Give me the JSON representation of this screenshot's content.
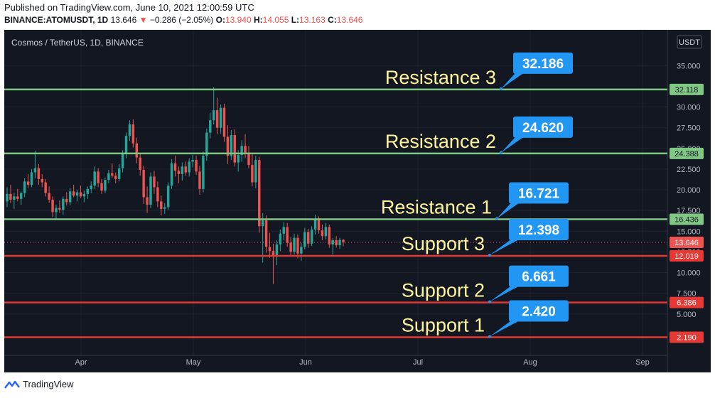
{
  "header": {
    "published": "Published on TradingView.com, June 10, 2021 12:00:59 UTC",
    "symbol": "BINANCE:ATOMUSDT, 1D",
    "last": "13.646",
    "arrow": "▼",
    "change": "−0.286 (−2.05%)",
    "o_label": "O:",
    "o": "13.940",
    "h_label": "H:",
    "h": "14.055",
    "l_label": "L:",
    "l": "13.163",
    "c_label": "C:",
    "c": "13.646"
  },
  "chart_title": "Cosmos / TetherUS, 1D, BINANCE",
  "currency": "USDT",
  "footer": {
    "brand": "TradingView",
    "icon": "tradingview-logo-icon"
  },
  "colors": {
    "background": "#131722",
    "up": "#26a69a",
    "down": "#ef5350",
    "resistance": "#81c784",
    "support": "#e53935",
    "callout": "#2196f3",
    "label_text": "#fff59d",
    "axis_text": "#b2b5be"
  },
  "chart_data": {
    "type": "candlestick",
    "ylim": [
      0,
      37.6
    ],
    "y_ticks": [
      "5.000",
      "7.500",
      "10.000",
      "12.500",
      "15.000",
      "17.500",
      "20.000",
      "22.500",
      "25.000",
      "27.500",
      "30.000",
      "35.000"
    ],
    "x_ticks": [
      "Apr",
      "May",
      "Jun",
      "Jul",
      "Aug",
      "Sep"
    ],
    "last_price": {
      "value": 13.646,
      "label": "13.646"
    },
    "levels": [
      {
        "name": "Resistance 3",
        "callout": "32.186",
        "value": 32.118,
        "axis_label": "32.118",
        "kind": "resistance"
      },
      {
        "name": "Resistance 2",
        "callout": "24.620",
        "value": 24.388,
        "axis_label": "24.388",
        "kind": "resistance"
      },
      {
        "name": "Resistance 1",
        "callout": "16.721",
        "value": 16.436,
        "axis_label": "16.436",
        "kind": "resistance"
      },
      {
        "name": "Support 3",
        "callout": "12.398",
        "value": 12.019,
        "axis_label": "12.019",
        "kind": "support"
      },
      {
        "name": "Support 2",
        "callout": "6.661",
        "value": 6.386,
        "axis_label": "6.386",
        "kind": "support"
      },
      {
        "name": "Support 1",
        "callout": "2.420",
        "value": 2.19,
        "axis_label": "2.190",
        "kind": "support"
      }
    ],
    "candles": [
      {
        "o": 18.6,
        "h": 20.3,
        "l": 17.9,
        "c": 19.5
      },
      {
        "o": 19.5,
        "h": 20.6,
        "l": 18.4,
        "c": 18.8
      },
      {
        "o": 18.8,
        "h": 19.6,
        "l": 17.7,
        "c": 19.2
      },
      {
        "o": 19.2,
        "h": 20.1,
        "l": 18.6,
        "c": 18.9
      },
      {
        "o": 18.9,
        "h": 19.8,
        "l": 18.2,
        "c": 19.6
      },
      {
        "o": 19.6,
        "h": 21.4,
        "l": 19.1,
        "c": 21.0
      },
      {
        "o": 21.0,
        "h": 21.9,
        "l": 20.2,
        "c": 20.6
      },
      {
        "o": 20.6,
        "h": 22.5,
        "l": 20.3,
        "c": 22.1
      },
      {
        "o": 22.1,
        "h": 24.7,
        "l": 21.4,
        "c": 22.6
      },
      {
        "o": 22.6,
        "h": 23.1,
        "l": 20.6,
        "c": 21.3
      },
      {
        "o": 21.3,
        "h": 21.9,
        "l": 20.3,
        "c": 20.9
      },
      {
        "o": 20.9,
        "h": 21.3,
        "l": 19.2,
        "c": 19.6
      },
      {
        "o": 19.6,
        "h": 20.4,
        "l": 18.4,
        "c": 18.8
      },
      {
        "o": 18.8,
        "h": 19.2,
        "l": 16.7,
        "c": 17.3
      },
      {
        "o": 17.3,
        "h": 18.2,
        "l": 16.5,
        "c": 17.8
      },
      {
        "o": 17.8,
        "h": 18.7,
        "l": 17.2,
        "c": 17.6
      },
      {
        "o": 17.6,
        "h": 19.2,
        "l": 17.0,
        "c": 18.9
      },
      {
        "o": 18.9,
        "h": 19.7,
        "l": 18.1,
        "c": 18.5
      },
      {
        "o": 18.5,
        "h": 20.2,
        "l": 18.1,
        "c": 19.8
      },
      {
        "o": 19.8,
        "h": 20.6,
        "l": 19.1,
        "c": 19.3
      },
      {
        "o": 19.3,
        "h": 20.0,
        "l": 18.6,
        "c": 19.7
      },
      {
        "o": 19.7,
        "h": 20.5,
        "l": 19.0,
        "c": 19.2
      },
      {
        "o": 19.2,
        "h": 19.9,
        "l": 18.5,
        "c": 19.5
      },
      {
        "o": 19.5,
        "h": 20.4,
        "l": 18.9,
        "c": 20.1
      },
      {
        "o": 20.1,
        "h": 21.0,
        "l": 19.6,
        "c": 20.5
      },
      {
        "o": 20.5,
        "h": 22.8,
        "l": 20.1,
        "c": 22.2
      },
      {
        "o": 22.2,
        "h": 22.6,
        "l": 20.3,
        "c": 20.8
      },
      {
        "o": 20.8,
        "h": 21.3,
        "l": 19.5,
        "c": 19.9
      },
      {
        "o": 19.9,
        "h": 21.5,
        "l": 19.6,
        "c": 21.2
      },
      {
        "o": 21.2,
        "h": 22.4,
        "l": 20.8,
        "c": 22.0
      },
      {
        "o": 22.0,
        "h": 23.2,
        "l": 21.4,
        "c": 21.7
      },
      {
        "o": 21.7,
        "h": 22.1,
        "l": 20.8,
        "c": 21.3
      },
      {
        "o": 21.3,
        "h": 23.1,
        "l": 21.0,
        "c": 22.6
      },
      {
        "o": 22.6,
        "h": 24.8,
        "l": 22.1,
        "c": 24.4
      },
      {
        "o": 24.4,
        "h": 26.9,
        "l": 23.8,
        "c": 26.5
      },
      {
        "o": 26.5,
        "h": 28.4,
        "l": 25.9,
        "c": 27.9
      },
      {
        "o": 27.9,
        "h": 28.5,
        "l": 25.1,
        "c": 25.6
      },
      {
        "o": 25.6,
        "h": 26.3,
        "l": 23.2,
        "c": 23.9
      },
      {
        "o": 23.9,
        "h": 24.3,
        "l": 21.7,
        "c": 22.4
      },
      {
        "o": 22.4,
        "h": 22.9,
        "l": 18.3,
        "c": 19.1
      },
      {
        "o": 19.1,
        "h": 20.4,
        "l": 17.2,
        "c": 18.2
      },
      {
        "o": 18.2,
        "h": 22.1,
        "l": 17.8,
        "c": 21.6
      },
      {
        "o": 21.6,
        "h": 22.3,
        "l": 19.5,
        "c": 20.3
      },
      {
        "o": 20.3,
        "h": 21.0,
        "l": 17.9,
        "c": 18.6
      },
      {
        "o": 18.6,
        "h": 19.3,
        "l": 16.9,
        "c": 17.7
      },
      {
        "o": 17.7,
        "h": 18.4,
        "l": 17.1,
        "c": 17.9
      },
      {
        "o": 17.9,
        "h": 20.9,
        "l": 17.6,
        "c": 20.5
      },
      {
        "o": 20.5,
        "h": 23.7,
        "l": 20.1,
        "c": 23.2
      },
      {
        "o": 23.2,
        "h": 24.1,
        "l": 21.6,
        "c": 22.3
      },
      {
        "o": 22.3,
        "h": 22.8,
        "l": 20.8,
        "c": 21.9
      },
      {
        "o": 21.9,
        "h": 23.3,
        "l": 21.1,
        "c": 22.8
      },
      {
        "o": 22.8,
        "h": 23.4,
        "l": 21.7,
        "c": 22.1
      },
      {
        "o": 22.1,
        "h": 23.8,
        "l": 21.6,
        "c": 23.4
      },
      {
        "o": 23.4,
        "h": 24.2,
        "l": 22.7,
        "c": 23.6
      },
      {
        "o": 23.6,
        "h": 24.1,
        "l": 21.8,
        "c": 22.2
      },
      {
        "o": 22.2,
        "h": 22.9,
        "l": 19.4,
        "c": 20.1
      },
      {
        "o": 20.1,
        "h": 24.6,
        "l": 19.7,
        "c": 24.1
      },
      {
        "o": 24.1,
        "h": 27.4,
        "l": 23.5,
        "c": 26.9
      },
      {
        "o": 26.9,
        "h": 29.3,
        "l": 26.2,
        "c": 28.4
      },
      {
        "o": 28.4,
        "h": 32.4,
        "l": 27.9,
        "c": 29.6
      },
      {
        "o": 29.6,
        "h": 31.1,
        "l": 26.7,
        "c": 27.5
      },
      {
        "o": 27.5,
        "h": 30.3,
        "l": 26.8,
        "c": 29.9
      },
      {
        "o": 29.9,
        "h": 30.4,
        "l": 25.8,
        "c": 26.4
      },
      {
        "o": 26.4,
        "h": 27.8,
        "l": 23.1,
        "c": 24.1
      },
      {
        "o": 24.1,
        "h": 27.2,
        "l": 23.6,
        "c": 26.6
      },
      {
        "o": 26.6,
        "h": 27.3,
        "l": 22.8,
        "c": 23.3
      },
      {
        "o": 23.3,
        "h": 24.8,
        "l": 22.2,
        "c": 24.2
      },
      {
        "o": 24.2,
        "h": 26.0,
        "l": 23.4,
        "c": 25.3
      },
      {
        "o": 25.3,
        "h": 26.7,
        "l": 23.8,
        "c": 24.5
      },
      {
        "o": 24.5,
        "h": 25.3,
        "l": 22.6,
        "c": 23.0
      },
      {
        "o": 23.0,
        "h": 24.4,
        "l": 20.4,
        "c": 20.9
      },
      {
        "o": 20.9,
        "h": 24.1,
        "l": 20.2,
        "c": 23.6
      },
      {
        "o": 23.6,
        "h": 24.0,
        "l": 14.8,
        "c": 15.6
      },
      {
        "o": 15.6,
        "h": 17.2,
        "l": 11.2,
        "c": 16.3
      },
      {
        "o": 16.3,
        "h": 16.9,
        "l": 12.4,
        "c": 13.1
      },
      {
        "o": 13.1,
        "h": 14.8,
        "l": 11.8,
        "c": 12.6
      },
      {
        "o": 12.6,
        "h": 13.5,
        "l": 8.6,
        "c": 12.1
      },
      {
        "o": 12.1,
        "h": 13.9,
        "l": 10.9,
        "c": 13.4
      },
      {
        "o": 13.4,
        "h": 15.2,
        "l": 12.6,
        "c": 14.7
      },
      {
        "o": 14.7,
        "h": 16.1,
        "l": 13.9,
        "c": 15.5
      },
      {
        "o": 15.5,
        "h": 16.0,
        "l": 13.1,
        "c": 13.6
      },
      {
        "o": 13.6,
        "h": 14.3,
        "l": 12.0,
        "c": 12.5
      },
      {
        "o": 12.5,
        "h": 14.7,
        "l": 12.2,
        "c": 14.2
      },
      {
        "o": 14.2,
        "h": 14.6,
        "l": 11.7,
        "c": 12.3
      },
      {
        "o": 12.3,
        "h": 13.6,
        "l": 11.4,
        "c": 13.1
      },
      {
        "o": 13.1,
        "h": 15.4,
        "l": 12.8,
        "c": 14.9
      },
      {
        "o": 14.9,
        "h": 15.3,
        "l": 13.0,
        "c": 13.5
      },
      {
        "o": 13.5,
        "h": 15.6,
        "l": 13.2,
        "c": 15.2
      },
      {
        "o": 15.2,
        "h": 17.0,
        "l": 14.6,
        "c": 16.4
      },
      {
        "o": 16.4,
        "h": 16.8,
        "l": 14.7,
        "c": 15.1
      },
      {
        "o": 15.1,
        "h": 15.8,
        "l": 13.9,
        "c": 14.4
      },
      {
        "o": 14.4,
        "h": 16.0,
        "l": 14.0,
        "c": 15.5
      },
      {
        "o": 15.5,
        "h": 15.8,
        "l": 13.0,
        "c": 13.4
      },
      {
        "o": 13.4,
        "h": 14.2,
        "l": 12.2,
        "c": 13.9
      },
      {
        "o": 13.9,
        "h": 14.4,
        "l": 13.0,
        "c": 13.3
      },
      {
        "o": 13.3,
        "h": 14.2,
        "l": 12.9,
        "c": 13.94
      },
      {
        "o": 13.94,
        "h": 14.055,
        "l": 13.163,
        "c": 13.646
      }
    ]
  }
}
